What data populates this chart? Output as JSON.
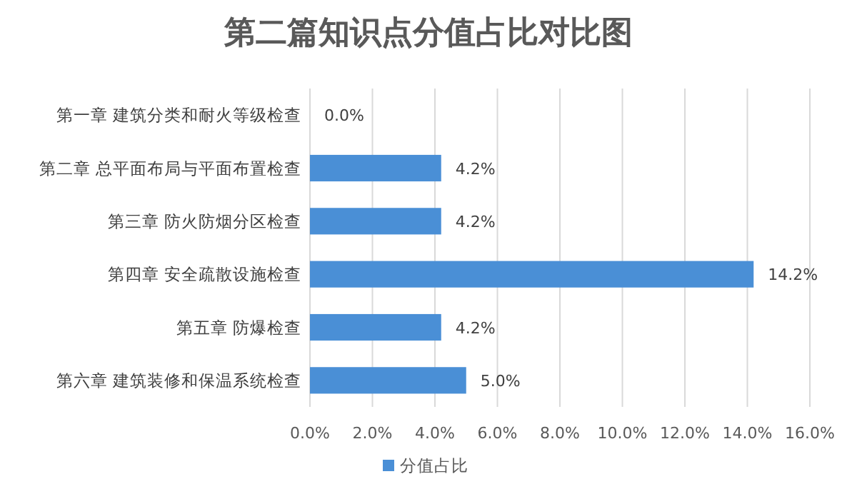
{
  "chart_data": {
    "type": "bar",
    "orientation": "horizontal",
    "title": "第二篇知识点分值占比对比图",
    "categories": [
      "第一章 建筑分类和耐火等级检查",
      "第二章 总平面布局与平面布置检查",
      "第三章 防火防烟分区检查",
      "第四章 安全疏散设施检查",
      "第五章 防爆检查",
      "第六章 建筑装修和保温系统检查"
    ],
    "series": [
      {
        "name": "分值占比",
        "color": "#4a8fd6",
        "values": [
          0.0,
          4.2,
          4.2,
          14.2,
          4.2,
          5.0
        ],
        "value_labels": [
          "0.0%",
          "4.2%",
          "4.2%",
          "14.2%",
          "4.2%",
          "5.0%"
        ]
      }
    ],
    "xlim": [
      0,
      16
    ],
    "xticks": [
      {
        "value": 0,
        "label": "0.0%"
      },
      {
        "value": 2,
        "label": "2.0%"
      },
      {
        "value": 4,
        "label": "4.0%"
      },
      {
        "value": 6,
        "label": "6.0%"
      },
      {
        "value": 8,
        "label": "8.0%"
      },
      {
        "value": 10,
        "label": "10.0%"
      },
      {
        "value": 12,
        "label": "12.0%"
      },
      {
        "value": 14,
        "label": "14.0%"
      },
      {
        "value": 16,
        "label": "16.0%"
      }
    ],
    "grid": "x",
    "legend": "bottom"
  }
}
